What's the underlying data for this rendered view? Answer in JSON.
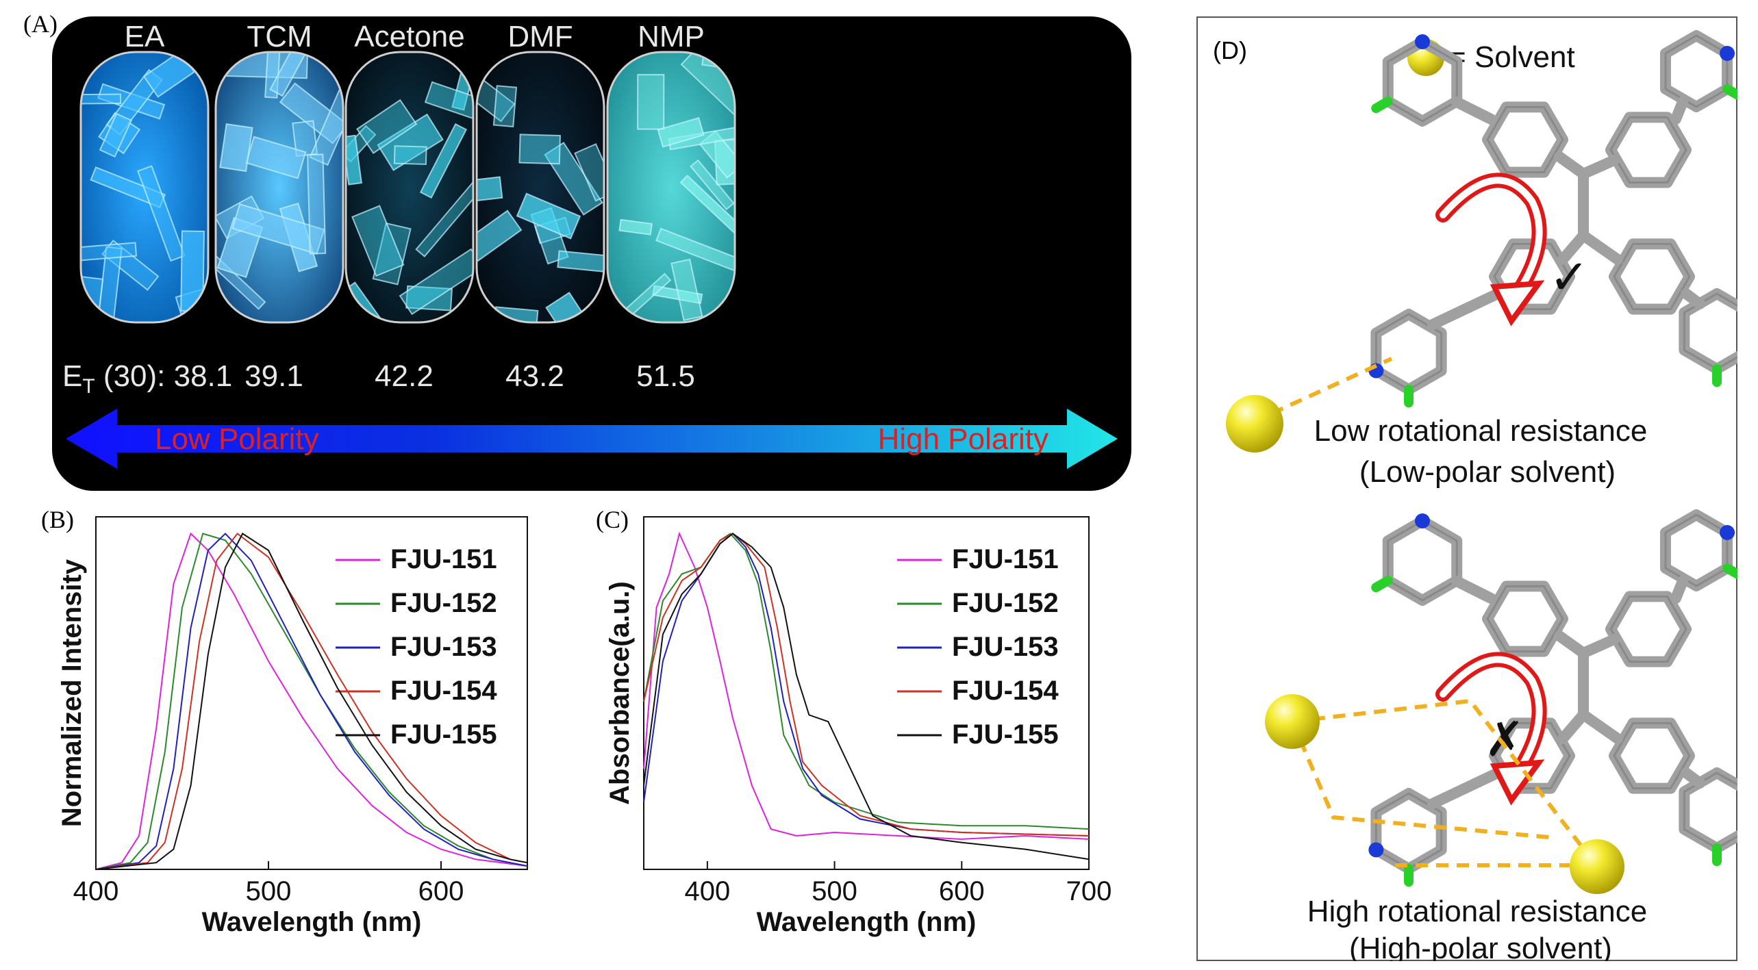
{
  "panel_a": {
    "label": "(A)",
    "solvents": [
      {
        "name": "EA",
        "et": "38.1"
      },
      {
        "name": "TCM",
        "et": "39.1"
      },
      {
        "name": "Acetone",
        "et": "42.2"
      },
      {
        "name": "DMF",
        "et": "43.2"
      },
      {
        "name": "NMP",
        "et": "51.5"
      }
    ],
    "et_prefix_main": "E",
    "et_prefix_sub": "T",
    "et_prefix_rest": " (30): ",
    "arrow_left_text": "Low Polarity",
    "arrow_right_text": "High Polarity",
    "colors": {
      "low": "#1010ff",
      "high": "#22e6e6",
      "arrow_text": "#e02020"
    }
  },
  "panel_b": {
    "label": "(B)"
  },
  "panel_c": {
    "label": "(C)"
  },
  "panel_d": {
    "label": "(D)",
    "legend_text": "= Solvent",
    "top_caption_1": "Low rotational resistance",
    "top_caption_2": "(Low-polar solvent)",
    "bottom_caption_1": "High rotational resistance",
    "bottom_caption_2": "(High-polar solvent)",
    "check_mark": "✓",
    "cross_mark": "✗"
  },
  "chart_data": [
    {
      "type": "line",
      "xlabel": "Wavelength (nm)",
      "ylabel": "Normalized Intensity",
      "xlim": [
        400,
        650
      ],
      "xticks": [
        "400",
        "500",
        "600"
      ],
      "ylim": [
        0,
        1.05
      ],
      "series": [
        {
          "name": "FJU-151",
          "color": "#e020e0",
          "x": [
            400,
            415,
            425,
            435,
            445,
            455,
            465,
            480,
            500,
            520,
            540,
            560,
            580,
            600,
            620,
            650
          ],
          "y": [
            0.0,
            0.02,
            0.1,
            0.42,
            0.85,
            1.0,
            0.95,
            0.82,
            0.62,
            0.45,
            0.3,
            0.19,
            0.11,
            0.06,
            0.03,
            0.01
          ]
        },
        {
          "name": "FJU-152",
          "color": "#2a8a2a",
          "x": [
            400,
            420,
            430,
            440,
            450,
            462,
            475,
            490,
            510,
            530,
            550,
            570,
            590,
            610,
            630,
            650
          ],
          "y": [
            0.0,
            0.02,
            0.08,
            0.35,
            0.78,
            1.0,
            0.98,
            0.88,
            0.7,
            0.52,
            0.36,
            0.23,
            0.13,
            0.07,
            0.03,
            0.01
          ]
        },
        {
          "name": "FJU-153",
          "color": "#2020c0",
          "x": [
            400,
            425,
            435,
            445,
            455,
            465,
            475,
            490,
            510,
            530,
            550,
            570,
            590,
            610,
            630,
            650
          ],
          "y": [
            0.0,
            0.02,
            0.07,
            0.3,
            0.72,
            0.95,
            1.0,
            0.92,
            0.72,
            0.52,
            0.35,
            0.22,
            0.12,
            0.06,
            0.03,
            0.01
          ]
        },
        {
          "name": "FJU-154",
          "color": "#d03020",
          "x": [
            400,
            430,
            440,
            450,
            460,
            470,
            482,
            500,
            520,
            540,
            560,
            580,
            600,
            620,
            640,
            650
          ],
          "y": [
            0.0,
            0.02,
            0.08,
            0.3,
            0.68,
            0.92,
            1.0,
            0.93,
            0.76,
            0.58,
            0.41,
            0.27,
            0.16,
            0.08,
            0.03,
            0.02
          ]
        },
        {
          "name": "FJU-155",
          "color": "#111111",
          "x": [
            400,
            435,
            445,
            455,
            465,
            475,
            485,
            500,
            520,
            540,
            560,
            580,
            600,
            620,
            640,
            650
          ],
          "y": [
            0.0,
            0.02,
            0.06,
            0.25,
            0.64,
            0.9,
            1.0,
            0.95,
            0.74,
            0.54,
            0.37,
            0.23,
            0.13,
            0.06,
            0.03,
            0.02
          ]
        }
      ]
    },
    {
      "type": "line",
      "xlabel": "Wavelength (nm)",
      "ylabel": "Absorbance(a.u.)",
      "xlim": [
        350,
        700
      ],
      "xticks": [
        "400",
        "500",
        "600",
        "700"
      ],
      "ylim": [
        0,
        1.05
      ],
      "series": [
        {
          "name": "FJU-151",
          "color": "#e020e0",
          "x": [
            350,
            360,
            370,
            378,
            390,
            400,
            410,
            420,
            435,
            450,
            470,
            500,
            550,
            600,
            650,
            700
          ],
          "y": [
            0.3,
            0.78,
            0.88,
            1.0,
            0.9,
            0.78,
            0.62,
            0.45,
            0.25,
            0.12,
            0.1,
            0.11,
            0.1,
            0.09,
            0.1,
            0.09
          ]
        },
        {
          "name": "FJU-152",
          "color": "#2a8a2a",
          "x": [
            350,
            365,
            380,
            395,
            410,
            418,
            430,
            440,
            450,
            460,
            480,
            500,
            550,
            600,
            650,
            700
          ],
          "y": [
            0.5,
            0.8,
            0.88,
            0.9,
            0.98,
            1.0,
            0.95,
            0.85,
            0.65,
            0.4,
            0.25,
            0.2,
            0.14,
            0.13,
            0.13,
            0.12
          ]
        },
        {
          "name": "FJU-153",
          "color": "#2020c0",
          "x": [
            350,
            365,
            380,
            395,
            410,
            420,
            430,
            440,
            450,
            460,
            475,
            490,
            520,
            560,
            600,
            700
          ],
          "y": [
            0.2,
            0.62,
            0.8,
            0.88,
            0.97,
            1.0,
            0.96,
            0.88,
            0.72,
            0.5,
            0.3,
            0.22,
            0.15,
            0.12,
            0.11,
            0.1
          ]
        },
        {
          "name": "FJU-154",
          "color": "#d03020",
          "x": [
            350,
            365,
            380,
            395,
            410,
            420,
            430,
            445,
            455,
            465,
            475,
            490,
            520,
            560,
            600,
            700
          ],
          "y": [
            0.5,
            0.75,
            0.86,
            0.9,
            0.98,
            1.0,
            0.97,
            0.9,
            0.72,
            0.5,
            0.32,
            0.25,
            0.16,
            0.12,
            0.11,
            0.1
          ]
        },
        {
          "name": "FJU-155",
          "color": "#111111",
          "x": [
            350,
            365,
            380,
            395,
            410,
            420,
            435,
            450,
            460,
            470,
            480,
            495,
            510,
            530,
            560,
            600,
            650,
            700
          ],
          "y": [
            0.25,
            0.7,
            0.82,
            0.88,
            0.97,
            1.0,
            0.96,
            0.9,
            0.78,
            0.58,
            0.46,
            0.44,
            0.32,
            0.16,
            0.1,
            0.08,
            0.06,
            0.03
          ]
        }
      ]
    }
  ]
}
